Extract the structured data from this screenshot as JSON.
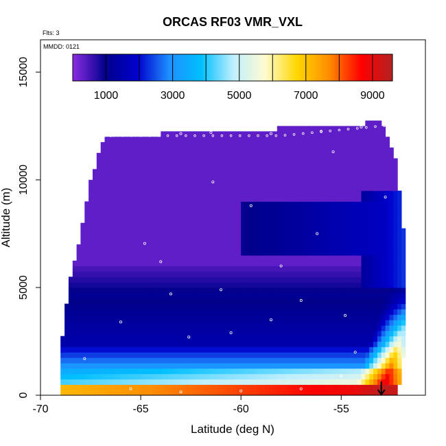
{
  "chart_data": {
    "type": "heatmap",
    "title": "ORCAS RF03 VMR_VXL",
    "flights_note": "Flts: 3",
    "date_note": "MMDD: 0121",
    "xlabel": "Latitude (deg N)",
    "ylabel": "Altitude (m)",
    "xlim": [
      -70,
      -50.8
    ],
    "ylim": [
      0,
      16500
    ],
    "x_ticks": [
      "-70",
      "-65",
      "-60",
      "-55"
    ],
    "x_tick_values": [
      -70,
      -65,
      -60,
      -55
    ],
    "y_ticks": [
      "0",
      "5000",
      "10000",
      "15000"
    ],
    "y_tick_values": [
      0,
      5000,
      10000,
      15000
    ],
    "grid": false,
    "colorbar": {
      "range": [
        0,
        9600
      ],
      "tick_labels": [
        "1000",
        "3000",
        "5000",
        "7000",
        "9000"
      ],
      "tick_values": [
        1000,
        3000,
        5000,
        7000,
        9000
      ],
      "segment_boundaries": [
        1000,
        2000,
        3000,
        4000,
        5000,
        6000,
        7000,
        8000,
        9000
      ],
      "colors": [
        "#8a2be2",
        "#00008b",
        "#0000cd",
        "#1e90ff",
        "#00bfff",
        "#bfefff",
        "#fffbd0",
        "#ffd700",
        "#ff8c00",
        "#ff0000",
        "#b22222"
      ],
      "placement": "top, inside plot"
    },
    "surface_field": {
      "description_values": "moisture volume mixing ratio by latitude and altitude",
      "top_altitude_by_lat": [
        [
          -69,
          1900
        ],
        [
          -68.6,
          5000
        ],
        [
          -68,
          7500
        ],
        [
          -67.5,
          10000
        ],
        [
          -66.8,
          12000
        ],
        [
          -60,
          12300
        ],
        [
          -55,
          12500
        ],
        [
          -53,
          12700
        ],
        [
          -52.3,
          11000
        ],
        [
          -51.8,
          7000
        ],
        [
          -52.2,
          4500
        ],
        [
          -53,
          3200
        ]
      ],
      "dry_upper_value": 300,
      "mid_value": 1500,
      "wet_surface_value": 7000,
      "max_value": 9500
    },
    "flight_track": {
      "points": [
        [
          -66.5,
          12050
        ],
        [
          -65,
          12100
        ],
        [
          -63,
          12150
        ],
        [
          -61.5,
          12200
        ],
        [
          -58.5,
          12150
        ],
        [
          -56,
          12250
        ],
        [
          -54,
          12450
        ],
        [
          -52.5,
          12550
        ],
        [
          -58,
          6000
        ],
        [
          -61,
          4900
        ],
        [
          -63.5,
          4700
        ],
        [
          -66,
          3400
        ],
        [
          -67.8,
          1700
        ],
        [
          -65.5,
          300
        ],
        [
          -63,
          150
        ],
        [
          -60,
          200
        ],
        [
          -57,
          300
        ],
        [
          -55,
          900
        ],
        [
          -54.3,
          2000
        ],
        [
          -54.8,
          3700
        ],
        [
          -57,
          4400
        ],
        [
          -59.5,
          8800
        ],
        [
          -61.4,
          9900
        ],
        [
          -64.8,
          7050
        ],
        [
          -64,
          6200
        ],
        [
          -62.6,
          2700
        ],
        [
          -60.5,
          2900
        ],
        [
          -58.5,
          3500
        ],
        [
          -56.2,
          7500
        ],
        [
          -55.4,
          11300
        ],
        [
          -52.8,
          9200
        ]
      ]
    },
    "marker": {
      "label": "arrow",
      "lat": -53
    }
  }
}
